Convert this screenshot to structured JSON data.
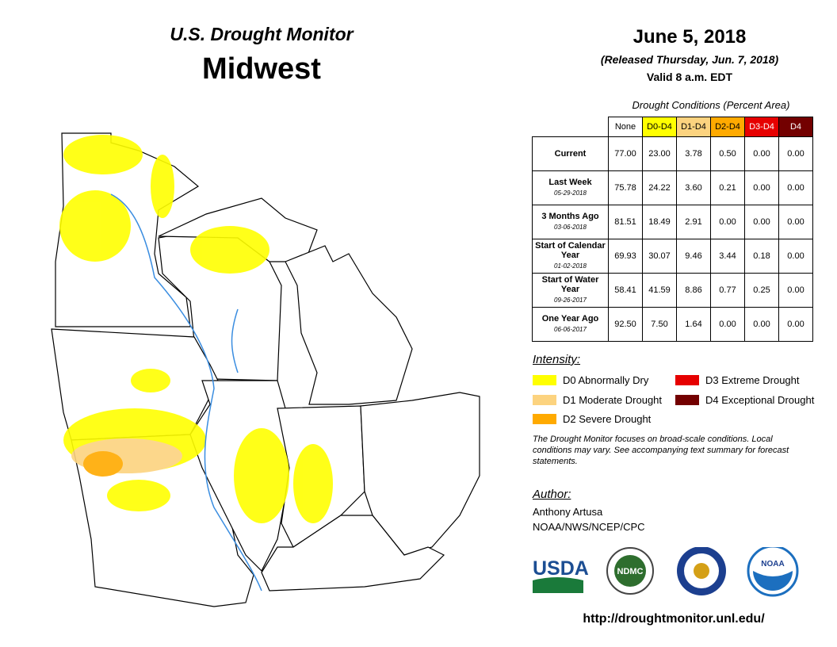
{
  "header": {
    "title": "U.S. Drought Monitor",
    "region": "Midwest"
  },
  "date": {
    "map_date": "June 5, 2018",
    "released": "(Released Thursday, Jun. 7, 2018)",
    "valid": "Valid 8 a.m. EDT"
  },
  "table": {
    "caption": "Drought Conditions (Percent Area)",
    "columns": [
      {
        "label": "None",
        "color": "#ffffff",
        "text_color": "#000000"
      },
      {
        "label": "D0-D4",
        "color": "#ffff00",
        "text_color": "#000000"
      },
      {
        "label": "D1-D4",
        "color": "#fcd37f",
        "text_color": "#000000"
      },
      {
        "label": "D2-D4",
        "color": "#ffaa00",
        "text_color": "#000000"
      },
      {
        "label": "D3-D4",
        "color": "#e60000",
        "text_color": "#ffffff"
      },
      {
        "label": "D4",
        "color": "#730000",
        "text_color": "#ffffff"
      }
    ],
    "rows": [
      {
        "label": "Current",
        "values": [
          "77.00",
          "23.00",
          "3.78",
          "0.50",
          "0.00",
          "0.00"
        ]
      },
      {
        "label": "Last Week",
        "date": "05-29-2018",
        "values": [
          "75.78",
          "24.22",
          "3.60",
          "0.21",
          "0.00",
          "0.00"
        ]
      },
      {
        "label": "3 Months Ago",
        "date": "03-06-2018",
        "values": [
          "81.51",
          "18.49",
          "2.91",
          "0.00",
          "0.00",
          "0.00"
        ]
      },
      {
        "label": "Start of Calendar Year",
        "date": "01-02-2018",
        "values": [
          "69.93",
          "30.07",
          "9.46",
          "3.44",
          "0.18",
          "0.00"
        ]
      },
      {
        "label": "Start of Water Year",
        "date": "09-26-2017",
        "values": [
          "58.41",
          "41.59",
          "8.86",
          "0.77",
          "0.25",
          "0.00"
        ]
      },
      {
        "label": "One Year Ago",
        "date": "06-06-2017",
        "values": [
          "92.50",
          "7.50",
          "1.64",
          "0.00",
          "0.00",
          "0.00"
        ]
      }
    ]
  },
  "legend": {
    "title": "Intensity:",
    "items": [
      {
        "label": "D0 Abnormally Dry",
        "color": "#ffff00"
      },
      {
        "label": "D1 Moderate Drought",
        "color": "#fcd37f"
      },
      {
        "label": "D2 Severe Drought",
        "color": "#ffaa00"
      },
      {
        "label": "D3 Extreme Drought",
        "color": "#e60000"
      },
      {
        "label": "D4 Exceptional Drought",
        "color": "#730000"
      }
    ]
  },
  "note": "The Drought Monitor focuses on broad-scale conditions. Local conditions may vary. See accompanying text summary for forecast statements.",
  "author": {
    "label": "Author:",
    "name": "Anthony Artusa",
    "org": "NOAA/NWS/NCEP/CPC"
  },
  "logos": {
    "usda": "USDA",
    "ndmc": "NDMC",
    "noaa": "NOAA"
  },
  "url": "http://droughtmonitor.unl.edu/"
}
